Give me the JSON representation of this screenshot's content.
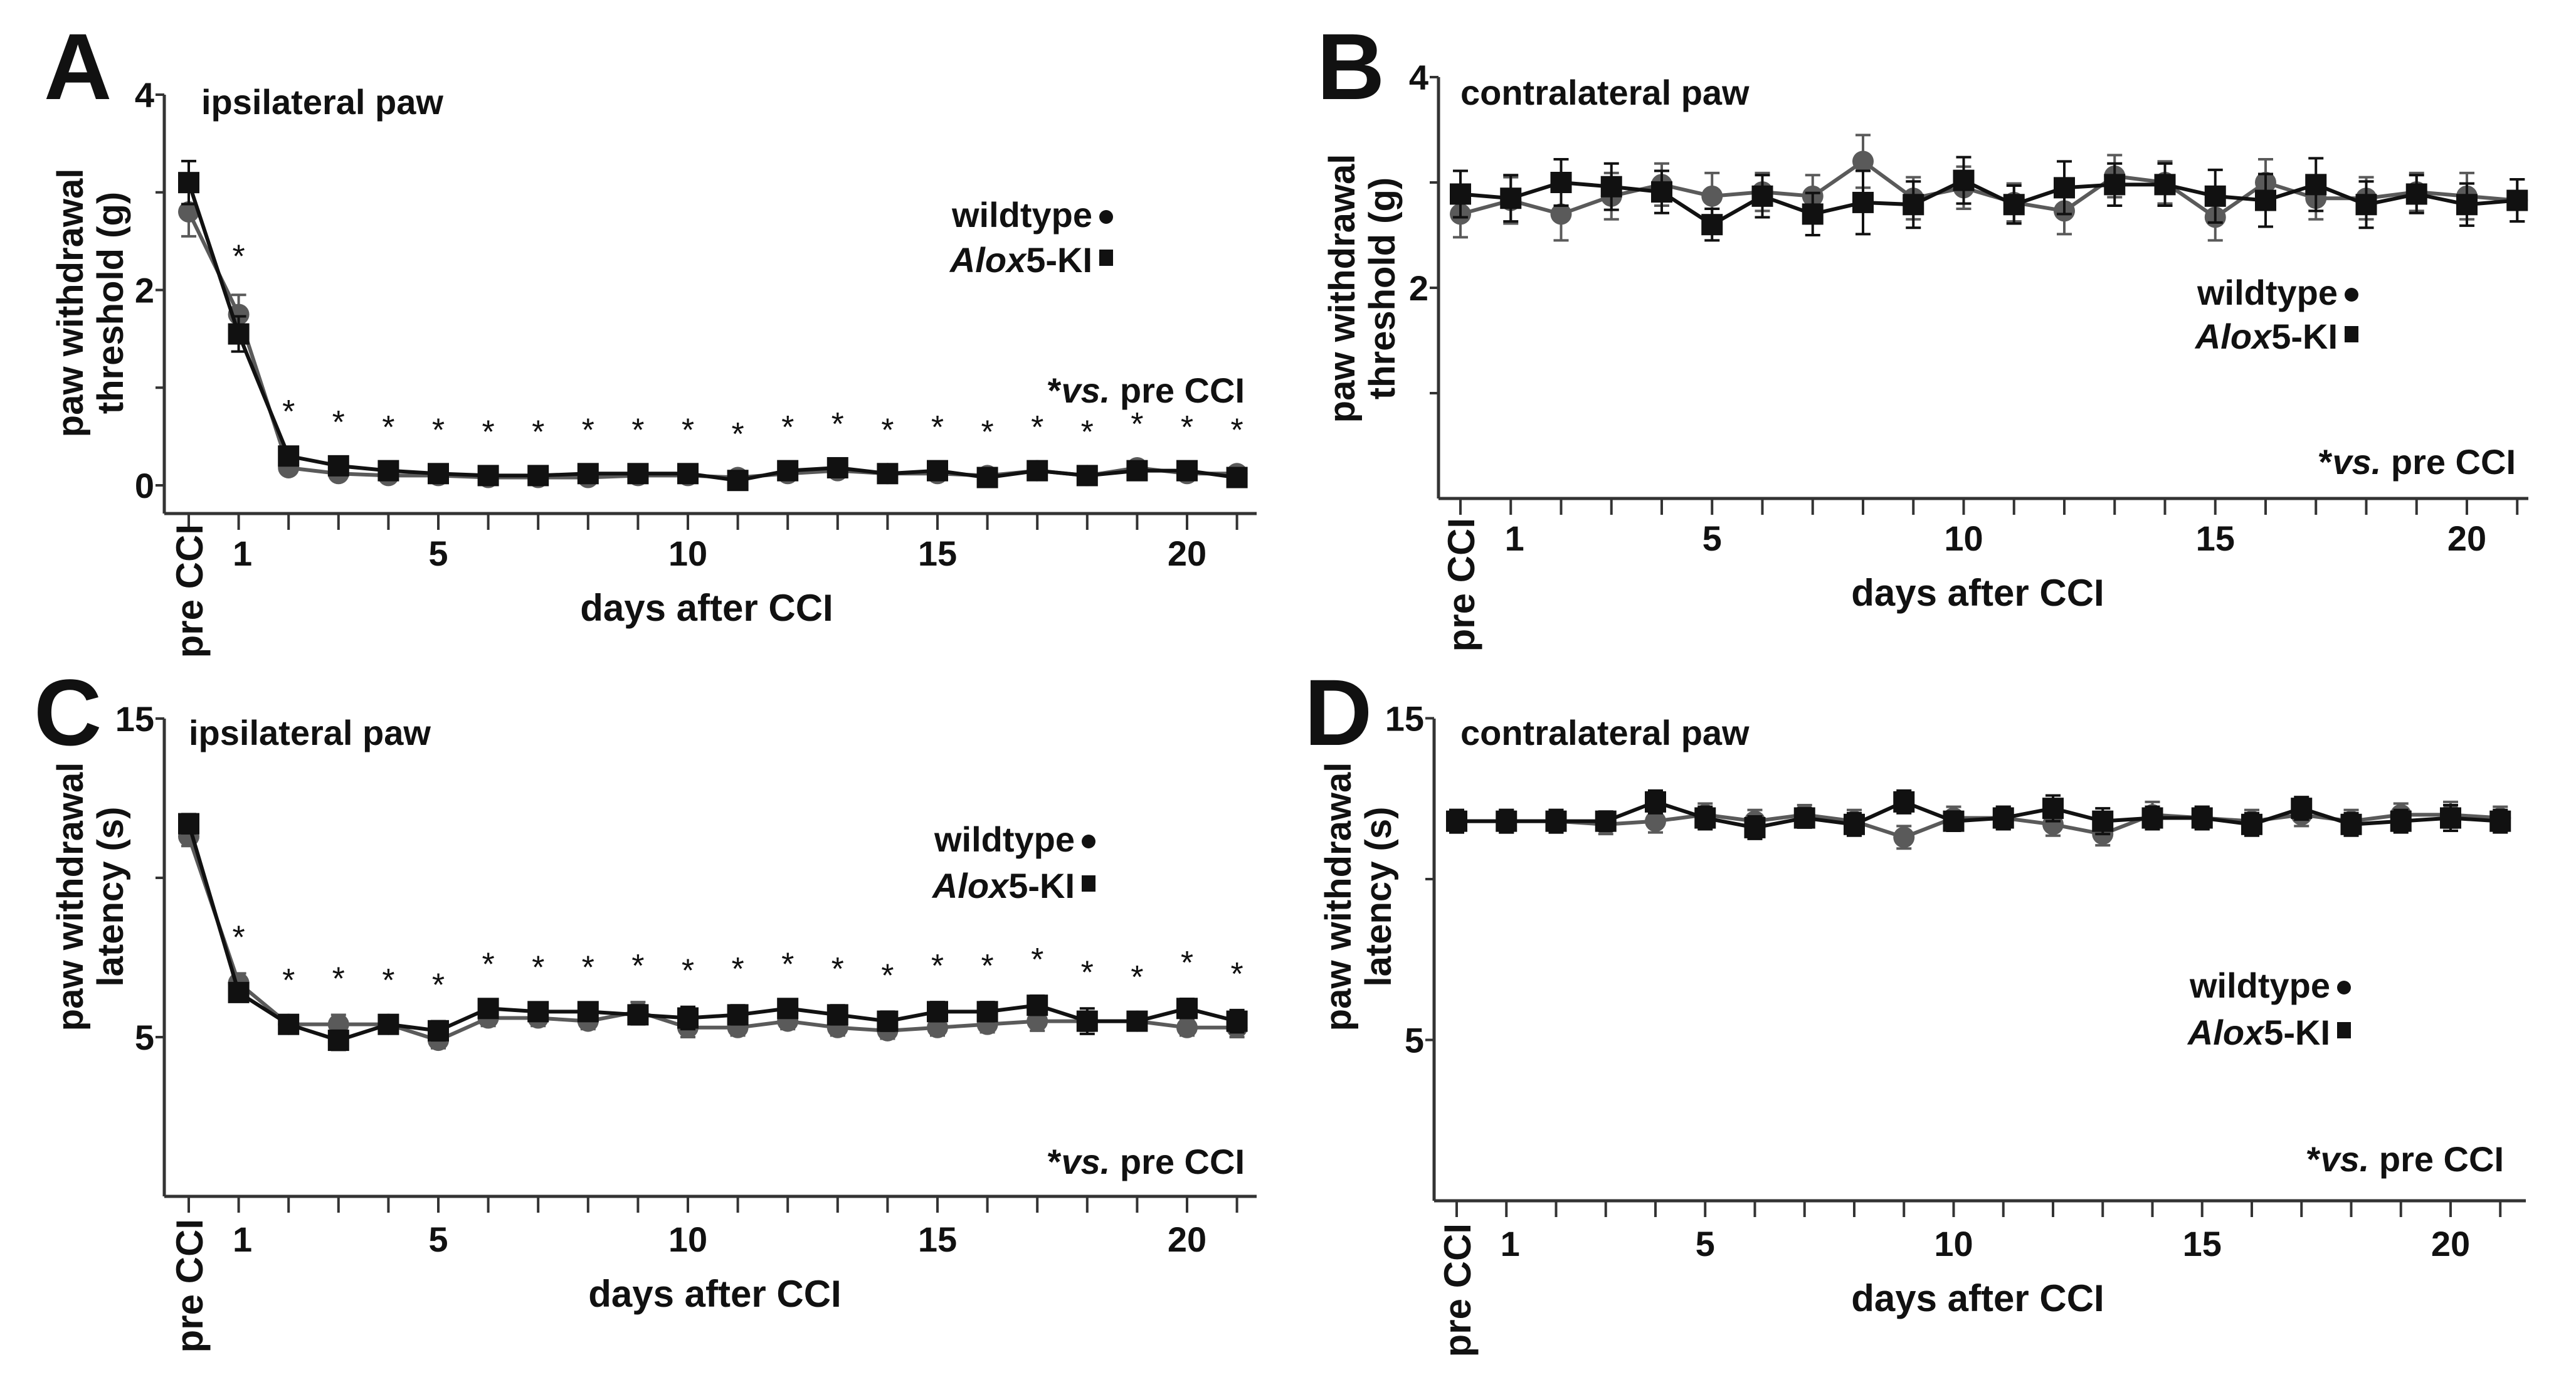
{
  "colors": {
    "wildtype": "#5a5a5a",
    "ki": "#111111",
    "axis": "#333333"
  },
  "chart_data": [
    {
      "type": "line",
      "panel": "A",
      "title": "ipsilateral paw",
      "ylabel": [
        "paw withdrawal",
        "threshold (g)"
      ],
      "xlabel": "days after CCI",
      "x_categories": [
        "pre CCI",
        "1",
        "2",
        "3",
        "4",
        "5",
        "6",
        "7",
        "8",
        "9",
        "10",
        "11",
        "12",
        "13",
        "14",
        "15",
        "16",
        "17",
        "18",
        "19",
        "20",
        "21"
      ],
      "x_tick_labels": [
        {
          "day": 0,
          "label": "pre CCI"
        },
        {
          "day": 1,
          "label": "1"
        },
        {
          "day": 5,
          "label": "5"
        },
        {
          "day": 10,
          "label": "10"
        },
        {
          "day": 15,
          "label": "15"
        },
        {
          "day": 20,
          "label": "20"
        }
      ],
      "yticks": [
        0,
        1,
        2,
        3,
        4
      ],
      "ytick_labels": [
        {
          "value": 0,
          "label": "0"
        },
        {
          "value": 2,
          "label": "2"
        },
        {
          "value": 4,
          "label": "4"
        }
      ],
      "ylim": [
        -0.3,
        4
      ],
      "legend": {
        "wildtype": "wildtype",
        "ki_italic": "Alox",
        "ki_rest": "5-KI",
        "placement": "top-right"
      },
      "note": {
        "star": "*",
        "italic": "vs.",
        "rest": " pre CCI"
      },
      "significant_days": [
        1,
        2,
        3,
        4,
        5,
        6,
        7,
        8,
        9,
        10,
        11,
        12,
        13,
        14,
        15,
        16,
        17,
        18,
        19,
        20,
        21
      ],
      "star_symbol": "*",
      "series": [
        {
          "name": "wildtype",
          "marker": "circle",
          "values": [
            2.8,
            1.75,
            0.18,
            0.12,
            0.1,
            0.1,
            0.08,
            0.08,
            0.08,
            0.1,
            0.1,
            0.08,
            0.12,
            0.15,
            0.12,
            0.12,
            0.1,
            0.15,
            0.1,
            0.18,
            0.12,
            0.12
          ],
          "errors": [
            0.25,
            0.2,
            0.05,
            0.05,
            0.05,
            0.05,
            0.05,
            0.05,
            0.05,
            0.05,
            0.05,
            0.05,
            0.05,
            0.05,
            0.05,
            0.05,
            0.05,
            0.05,
            0.05,
            0.05,
            0.05,
            0.05
          ]
        },
        {
          "name": "Alox5-KI",
          "marker": "square",
          "values": [
            3.1,
            1.55,
            0.3,
            0.2,
            0.15,
            0.12,
            0.1,
            0.1,
            0.12,
            0.12,
            0.12,
            0.05,
            0.15,
            0.18,
            0.12,
            0.15,
            0.08,
            0.15,
            0.1,
            0.15,
            0.15,
            0.08
          ],
          "errors": [
            0.22,
            0.18,
            0.06,
            0.05,
            0.05,
            0.05,
            0.05,
            0.05,
            0.05,
            0.05,
            0.05,
            0.05,
            0.05,
            0.05,
            0.05,
            0.05,
            0.05,
            0.05,
            0.05,
            0.05,
            0.05,
            0.05
          ]
        }
      ]
    },
    {
      "type": "line",
      "panel": "B",
      "title": "contralateral paw",
      "ylabel": [
        "paw withdrawal",
        "threshold (g)"
      ],
      "xlabel": "days after CCI",
      "x_categories": [
        "pre CCI",
        "1",
        "2",
        "3",
        "4",
        "5",
        "6",
        "7",
        "8",
        "9",
        "10",
        "11",
        "12",
        "13",
        "14",
        "15",
        "16",
        "17",
        "18",
        "19",
        "20",
        "21"
      ],
      "x_tick_labels": [
        {
          "day": 0,
          "label": "pre CCI"
        },
        {
          "day": 1,
          "label": "1"
        },
        {
          "day": 5,
          "label": "5"
        },
        {
          "day": 10,
          "label": "10"
        },
        {
          "day": 15,
          "label": "15"
        },
        {
          "day": 20,
          "label": "20"
        }
      ],
      "yticks": [
        1,
        2,
        3,
        4
      ],
      "ytick_labels": [
        {
          "value": 2,
          "label": "2"
        },
        {
          "value": 4,
          "label": "4"
        }
      ],
      "ylim": [
        0,
        4
      ],
      "legend": {
        "wildtype": "wildtype",
        "ki_italic": "Alox",
        "ki_rest": "5-KI",
        "placement": "center-right"
      },
      "note": {
        "star": "*",
        "italic": "vs.",
        "rest": " pre CCI"
      },
      "significant_days": [],
      "star_symbol": "*",
      "series": [
        {
          "name": "wildtype",
          "marker": "circle",
          "values": [
            2.7,
            2.83,
            2.7,
            2.87,
            2.98,
            2.87,
            2.91,
            2.87,
            3.2,
            2.85,
            2.95,
            2.81,
            2.73,
            3.06,
            3.0,
            2.67,
            3.0,
            2.85,
            2.85,
            2.91,
            2.87,
            2.83
          ],
          "errors": [
            0.22,
            0.22,
            0.25,
            0.22,
            0.2,
            0.22,
            0.18,
            0.2,
            0.25,
            0.2,
            0.2,
            0.18,
            0.22,
            0.2,
            0.2,
            0.22,
            0.22,
            0.2,
            0.2,
            0.18,
            0.22,
            0.2
          ]
        },
        {
          "name": "Alox5-KI",
          "marker": "square",
          "values": [
            2.89,
            2.85,
            3.0,
            2.96,
            2.91,
            2.6,
            2.87,
            2.7,
            2.81,
            2.79,
            3.02,
            2.79,
            2.95,
            2.98,
            2.98,
            2.87,
            2.83,
            2.98,
            2.79,
            2.89,
            2.79,
            2.83
          ],
          "errors": [
            0.22,
            0.22,
            0.22,
            0.22,
            0.2,
            0.15,
            0.2,
            0.2,
            0.3,
            0.22,
            0.22,
            0.18,
            0.25,
            0.2,
            0.2,
            0.25,
            0.25,
            0.25,
            0.22,
            0.18,
            0.2,
            0.2
          ]
        }
      ]
    },
    {
      "type": "line",
      "panel": "C",
      "title": "ipsilateral paw",
      "ylabel": [
        "paw withdrawal",
        "latency (s)"
      ],
      "xlabel": "days after CCI",
      "x_categories": [
        "pre CCI",
        "1",
        "2",
        "3",
        "4",
        "5",
        "6",
        "7",
        "8",
        "9",
        "10",
        "11",
        "12",
        "13",
        "14",
        "15",
        "16",
        "17",
        "18",
        "19",
        "20",
        "21"
      ],
      "x_tick_labels": [
        {
          "day": 0,
          "label": "pre CCI"
        },
        {
          "day": 1,
          "label": "1"
        },
        {
          "day": 5,
          "label": "5"
        },
        {
          "day": 10,
          "label": "10"
        },
        {
          "day": 15,
          "label": "15"
        },
        {
          "day": 20,
          "label": "20"
        }
      ],
      "yticks": [
        5,
        10,
        15
      ],
      "ytick_labels": [
        {
          "value": 5,
          "label": "5"
        },
        {
          "value": 15,
          "label": "15"
        }
      ],
      "ylim": [
        0,
        15
      ],
      "legend": {
        "wildtype": "wildtype",
        "ki_italic": "Alox",
        "ki_rest": "5-KI",
        "placement": "top-right"
      },
      "note": {
        "star": "*",
        "italic": "vs.",
        "rest": " pre CCI"
      },
      "significant_days": [
        1,
        2,
        3,
        4,
        5,
        6,
        7,
        8,
        9,
        10,
        11,
        12,
        13,
        14,
        15,
        16,
        17,
        18,
        19,
        20,
        21
      ],
      "star_symbol": "*",
      "series": [
        {
          "name": "wildtype",
          "marker": "circle",
          "values": [
            11.3,
            6.7,
            5.4,
            5.4,
            5.4,
            4.9,
            5.6,
            5.6,
            5.5,
            5.8,
            5.3,
            5.3,
            5.5,
            5.3,
            5.2,
            5.3,
            5.4,
            5.5,
            5.5,
            5.5,
            5.3,
            5.3
          ],
          "errors": [
            0.3,
            0.3,
            0.25,
            0.3,
            0.25,
            0.25,
            0.25,
            0.25,
            0.25,
            0.3,
            0.3,
            0.25,
            0.25,
            0.25,
            0.25,
            0.25,
            0.25,
            0.3,
            0.3,
            0.25,
            0.25,
            0.3
          ]
        },
        {
          "name": "Alox5-KI",
          "marker": "square",
          "values": [
            11.7,
            6.4,
            5.4,
            4.9,
            5.4,
            5.2,
            5.9,
            5.8,
            5.8,
            5.7,
            5.6,
            5.7,
            5.9,
            5.7,
            5.5,
            5.8,
            5.8,
            6.0,
            5.5,
            5.5,
            5.9,
            5.5
          ],
          "errors": [
            0.3,
            0.25,
            0.2,
            0.3,
            0.25,
            0.3,
            0.25,
            0.25,
            0.25,
            0.3,
            0.35,
            0.3,
            0.25,
            0.3,
            0.3,
            0.3,
            0.3,
            0.3,
            0.4,
            0.25,
            0.3,
            0.35
          ]
        }
      ]
    },
    {
      "type": "line",
      "panel": "D",
      "title": "contralateral paw",
      "ylabel": [
        "paw withdrawal",
        "latency (s)"
      ],
      "xlabel": "days after CCI",
      "x_categories": [
        "pre CCI",
        "1",
        "2",
        "3",
        "4",
        "5",
        "6",
        "7",
        "8",
        "9",
        "10",
        "11",
        "12",
        "13",
        "14",
        "15",
        "16",
        "17",
        "18",
        "19",
        "20",
        "21"
      ],
      "x_tick_labels": [
        {
          "day": 0,
          "label": "pre CCI"
        },
        {
          "day": 1,
          "label": "1"
        },
        {
          "day": 5,
          "label": "5"
        },
        {
          "day": 10,
          "label": "10"
        },
        {
          "day": 15,
          "label": "15"
        },
        {
          "day": 20,
          "label": "20"
        }
      ],
      "yticks": [
        5,
        10,
        15
      ],
      "ytick_labels": [
        {
          "value": 5,
          "label": "5"
        },
        {
          "value": 15,
          "label": "15"
        }
      ],
      "ylim": [
        0,
        15
      ],
      "legend": {
        "wildtype": "wildtype",
        "ki_italic": "Alox",
        "ki_rest": "5-KI",
        "placement": "center-right"
      },
      "note": {
        "star": "*",
        "italic": "vs.",
        "rest": " pre CCI"
      },
      "significant_days": [],
      "star_symbol": "*",
      "series": [
        {
          "name": "wildtype",
          "marker": "circle",
          "values": [
            11.8,
            11.8,
            11.8,
            11.7,
            11.8,
            12.0,
            11.8,
            12.0,
            11.8,
            11.3,
            11.9,
            11.9,
            11.7,
            11.4,
            12.0,
            11.9,
            11.8,
            12.0,
            11.8,
            12.0,
            12.0,
            11.9
          ],
          "errors": [
            0.35,
            0.35,
            0.35,
            0.3,
            0.35,
            0.35,
            0.35,
            0.3,
            0.35,
            0.35,
            0.35,
            0.35,
            0.35,
            0.35,
            0.4,
            0.35,
            0.35,
            0.35,
            0.35,
            0.35,
            0.4,
            0.35
          ]
        },
        {
          "name": "Alox5-KI",
          "marker": "square",
          "values": [
            11.8,
            11.8,
            11.8,
            11.8,
            12.4,
            11.9,
            11.6,
            11.9,
            11.7,
            12.4,
            11.8,
            11.9,
            12.2,
            11.8,
            11.9,
            11.9,
            11.7,
            12.2,
            11.7,
            11.8,
            11.9,
            11.8
          ],
          "errors": [
            0.35,
            0.35,
            0.35,
            0.3,
            0.35,
            0.35,
            0.35,
            0.3,
            0.35,
            0.35,
            0.3,
            0.35,
            0.4,
            0.4,
            0.35,
            0.35,
            0.35,
            0.35,
            0.35,
            0.35,
            0.4,
            0.35
          ]
        }
      ]
    }
  ]
}
